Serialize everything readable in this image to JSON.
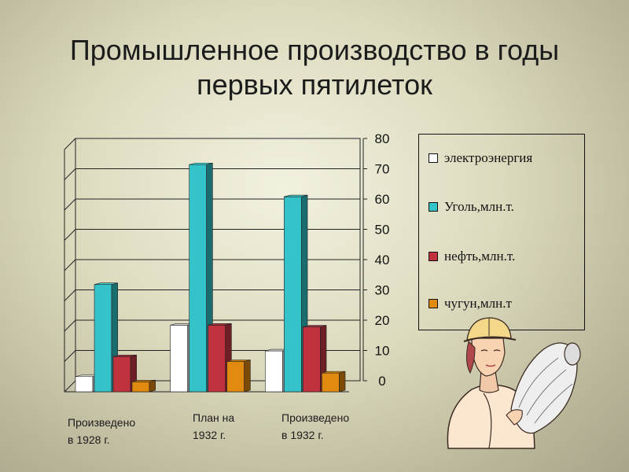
{
  "slide": {
    "title": "Промышленное производство в годы первых пятилеток"
  },
  "colors": {
    "electricity": "#ffffff",
    "coal": "#33c3c8",
    "oil": "#8e2b33",
    "pig_iron": "#b8740f"
  },
  "chart_data": {
    "type": "bar",
    "categories": [
      "Произведено\nв 1928 г.",
      "План на\n1932 г.",
      "Произведено\nв 1932 г."
    ],
    "series": [
      {
        "name": "электроэнергия",
        "values": [
          5,
          22,
          13.5
        ]
      },
      {
        "name": "Уголь,млн.т.",
        "values": [
          35.4,
          75,
          64.4
        ]
      },
      {
        "name": "нефть,млн.т.",
        "values": [
          11.6,
          22,
          21.4
        ]
      },
      {
        "name": "чугун,млн.т",
        "values": [
          3.3,
          10,
          6.2
        ]
      }
    ],
    "ylim": [
      0,
      80
    ],
    "yticks": [
      "0",
      "10",
      "20",
      "30",
      "40",
      "50",
      "60",
      "70",
      "80"
    ],
    "grid": true,
    "legend_position": "right",
    "style": "3d-bar"
  }
}
